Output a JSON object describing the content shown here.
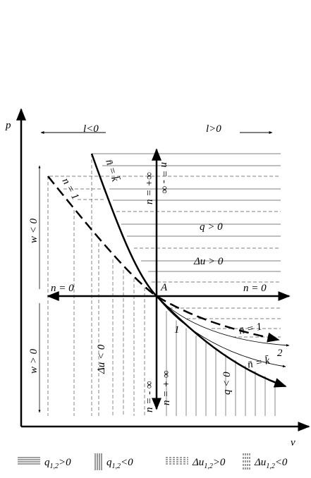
{
  "axes": {
    "y": "p",
    "x": "v"
  },
  "labels": {
    "l_neg": "l<0",
    "l_pos": "l>0",
    "adiabat_top": "n̄ = k̄",
    "isotherm_top": "n = 1",
    "n_plus_inf_top": "n = +∞",
    "n_minus_inf_top": "n = - ∞",
    "w_neg": "w < 0",
    "w_pos": "w > 0",
    "q_pos": "q > 0",
    "du_pos": "Δu > 0",
    "n_zero_left": "n = 0",
    "point": "A",
    "n_zero_right": "n = 0",
    "isotherm_bottom": "n̄ = 1",
    "curve_1": "1",
    "curve_2": "2",
    "adiabat_bottom": "n̄ = k̄",
    "du_neg": "Δu < 0",
    "q_neg": "q < 0",
    "n_minus_inf_bottom": "n = - ∞",
    "n_plus_inf_bottom": "n = + ∞"
  },
  "legend": [
    {
      "symbol": "q",
      "subscript": "1,2",
      "condition": ">0"
    },
    {
      "symbol": "q",
      "subscript": "1,2",
      "condition": "<0"
    },
    {
      "symbol": "Δu",
      "subscript": "1,2",
      "condition": ">0"
    },
    {
      "symbol": "Δu",
      "subscript": "1,2",
      "condition": "<0"
    }
  ]
}
